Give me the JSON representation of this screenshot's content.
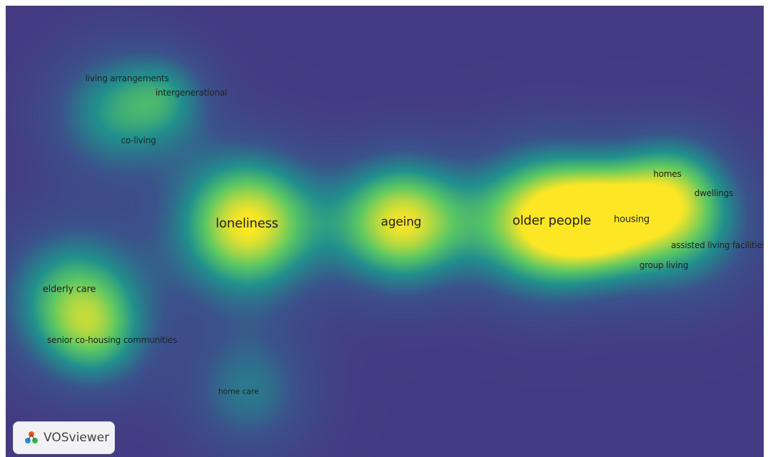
{
  "app": {
    "name": "VOSviewer"
  },
  "visualization": {
    "type": "density",
    "colors": {
      "background": "#443a83",
      "low": "#21908d",
      "mid": "#5cc863",
      "high": "#fde725"
    },
    "terms": [
      {
        "id": "living-arrangements",
        "label": "living arrangements",
        "weight": 0.35
      },
      {
        "id": "intergenerational",
        "label": "intergenerational",
        "weight": 0.35
      },
      {
        "id": "co-living",
        "label": "co-living",
        "weight": 0.3
      },
      {
        "id": "loneliness",
        "label": "loneliness",
        "weight": 1.0
      },
      {
        "id": "ageing",
        "label": "ageing",
        "weight": 0.95
      },
      {
        "id": "older-people",
        "label": "older people",
        "weight": 1.0
      },
      {
        "id": "homes",
        "label": "homes",
        "weight": 0.45
      },
      {
        "id": "dwellings",
        "label": "dwellings",
        "weight": 0.45
      },
      {
        "id": "housing",
        "label": "housing",
        "weight": 0.7
      },
      {
        "id": "assisted-living-facilities",
        "label": "assisted living facilities",
        "weight": 0.5
      },
      {
        "id": "group-living",
        "label": "group living",
        "weight": 0.45
      },
      {
        "id": "elderly-care",
        "label": "elderly care",
        "weight": 0.5
      },
      {
        "id": "senior-co-housing-communities",
        "label": "senior co-housing communities",
        "weight": 0.3
      },
      {
        "id": "home-care",
        "label": "home care",
        "weight": 0.3
      }
    ]
  }
}
